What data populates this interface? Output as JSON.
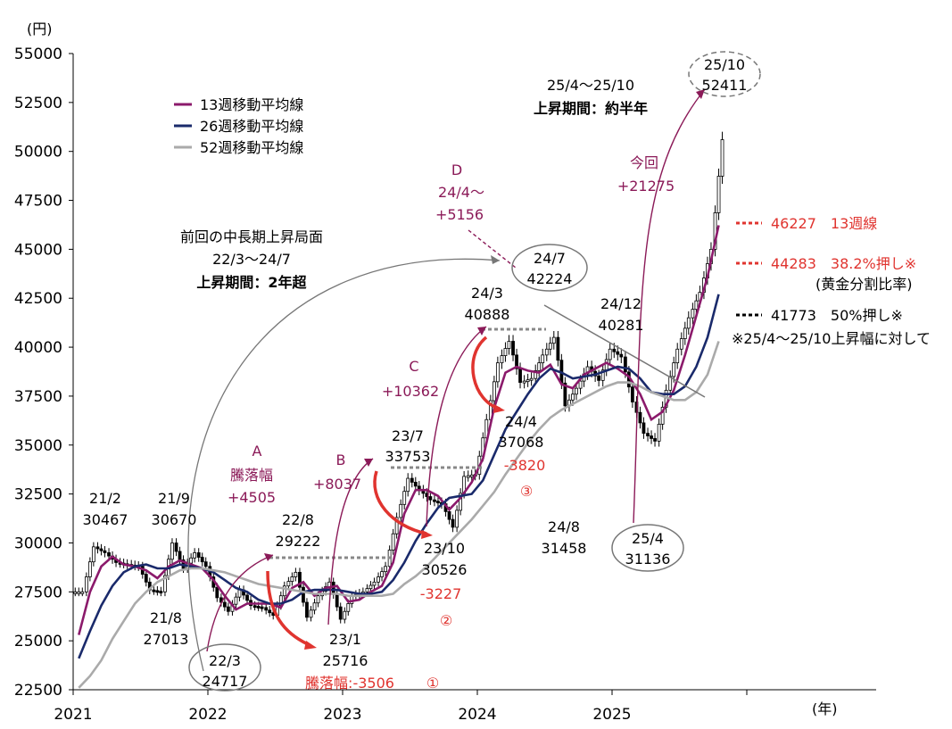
{
  "chart_data": {
    "type": "candlestick",
    "y_unit": "(円)",
    "x_unit": "(年)",
    "ylim": [
      22500,
      55000
    ],
    "y_ticks": [
      "55000",
      "52500",
      "50000",
      "47500",
      "45000",
      "42500",
      "40000",
      "37500",
      "35000",
      "32500",
      "30000",
      "27500",
      "25000",
      "22500"
    ],
    "x_ticks": [
      "2021",
      "2022",
      "2023",
      "2024",
      "2025"
    ],
    "xlim": [
      "2021-01",
      "2025-12"
    ],
    "legend": {
      "placement": "top-left",
      "entries": [
        {
          "label": "13週移動平均線",
          "color": "#8b1a6b"
        },
        {
          "label": "26週移動平均線",
          "color": "#1a2a6b"
        },
        {
          "label": "52週移動平均線",
          "color": "#aaaaaa"
        }
      ]
    },
    "series": [
      {
        "name": "13週移動平均線",
        "color": "#8b1a6b",
        "points": [
          [
            "2021-01",
            25300
          ],
          [
            "2021-02",
            27500
          ],
          [
            "2021-03",
            28800
          ],
          [
            "2021-04",
            29300
          ],
          [
            "2021-05",
            28900
          ],
          [
            "2021-06",
            28800
          ],
          [
            "2021-07",
            28600
          ],
          [
            "2021-08",
            28200
          ],
          [
            "2021-09",
            28800
          ],
          [
            "2021-10",
            29100
          ],
          [
            "2021-11",
            28900
          ],
          [
            "2021-12",
            28700
          ],
          [
            "2022-01",
            28100
          ],
          [
            "2022-02",
            27300
          ],
          [
            "2022-03",
            26600
          ],
          [
            "2022-04",
            26900
          ],
          [
            "2022-05",
            26900
          ],
          [
            "2022-06",
            26900
          ],
          [
            "2022-07",
            26700
          ],
          [
            "2022-08",
            27700
          ],
          [
            "2022-09",
            28000
          ],
          [
            "2022-10",
            27300
          ],
          [
            "2022-11",
            27700
          ],
          [
            "2022-12",
            27800
          ],
          [
            "2023-01",
            27000
          ],
          [
            "2023-02",
            27100
          ],
          [
            "2023-03",
            27500
          ],
          [
            "2023-04",
            27800
          ],
          [
            "2023-05",
            29000
          ],
          [
            "2023-06",
            31500
          ],
          [
            "2023-07",
            32700
          ],
          [
            "2023-08",
            32700
          ],
          [
            "2023-09",
            32400
          ],
          [
            "2023-10",
            31700
          ],
          [
            "2023-11",
            32300
          ],
          [
            "2023-12",
            33100
          ],
          [
            "2024-01",
            34300
          ],
          [
            "2024-02",
            36900
          ],
          [
            "2024-03",
            38700
          ],
          [
            "2024-04",
            39000
          ],
          [
            "2024-05",
            38800
          ],
          [
            "2024-06",
            38700
          ],
          [
            "2024-07",
            39100
          ],
          [
            "2024-08",
            38100
          ],
          [
            "2024-09",
            37900
          ],
          [
            "2024-10",
            38600
          ],
          [
            "2024-11",
            38900
          ],
          [
            "2024-12",
            39200
          ],
          [
            "2025-01",
            38900
          ],
          [
            "2025-02",
            38500
          ],
          [
            "2025-03",
            37600
          ],
          [
            "2025-04",
            36300
          ],
          [
            "2025-05",
            36700
          ],
          [
            "2025-06",
            37800
          ],
          [
            "2025-07",
            39600
          ],
          [
            "2025-08",
            41600
          ],
          [
            "2025-09",
            43600
          ],
          [
            "2025-10",
            46227
          ]
        ]
      },
      {
        "name": "26週移動平均線",
        "color": "#1a2a6b",
        "points": [
          [
            "2021-01",
            24100
          ],
          [
            "2021-02",
            25500
          ],
          [
            "2021-03",
            26800
          ],
          [
            "2021-04",
            27800
          ],
          [
            "2021-05",
            28500
          ],
          [
            "2021-06",
            28800
          ],
          [
            "2021-07",
            28900
          ],
          [
            "2021-08",
            28700
          ],
          [
            "2021-09",
            28700
          ],
          [
            "2021-10",
            28900
          ],
          [
            "2021-11",
            28800
          ],
          [
            "2021-12",
            28700
          ],
          [
            "2022-01",
            28500
          ],
          [
            "2022-02",
            28100
          ],
          [
            "2022-03",
            27700
          ],
          [
            "2022-04",
            27500
          ],
          [
            "2022-05",
            27100
          ],
          [
            "2022-06",
            26900
          ],
          [
            "2022-07",
            26900
          ],
          [
            "2022-08",
            27100
          ],
          [
            "2022-09",
            27500
          ],
          [
            "2022-10",
            27600
          ],
          [
            "2022-11",
            27600
          ],
          [
            "2022-12",
            27600
          ],
          [
            "2023-01",
            27500
          ],
          [
            "2023-02",
            27400
          ],
          [
            "2023-03",
            27400
          ],
          [
            "2023-04",
            27500
          ],
          [
            "2023-05",
            28100
          ],
          [
            "2023-06",
            29000
          ],
          [
            "2023-07",
            30100
          ],
          [
            "2023-08",
            31000
          ],
          [
            "2023-09",
            31800
          ],
          [
            "2023-10",
            32300
          ],
          [
            "2023-11",
            32400
          ],
          [
            "2023-12",
            32500
          ],
          [
            "2024-01",
            33200
          ],
          [
            "2024-02",
            34500
          ],
          [
            "2024-03",
            35800
          ],
          [
            "2024-04",
            36700
          ],
          [
            "2024-05",
            37600
          ],
          [
            "2024-06",
            38400
          ],
          [
            "2024-07",
            38900
          ],
          [
            "2024-08",
            38700
          ],
          [
            "2024-09",
            38400
          ],
          [
            "2024-10",
            38500
          ],
          [
            "2024-11",
            38600
          ],
          [
            "2024-12",
            38800
          ],
          [
            "2025-01",
            39000
          ],
          [
            "2025-02",
            38900
          ],
          [
            "2025-03",
            38400
          ],
          [
            "2025-04",
            37700
          ],
          [
            "2025-05",
            37600
          ],
          [
            "2025-06",
            37600
          ],
          [
            "2025-07",
            38000
          ],
          [
            "2025-08",
            39000
          ],
          [
            "2025-09",
            40500
          ],
          [
            "2025-10",
            42700
          ]
        ]
      },
      {
        "name": "52週移動平均線",
        "color": "#aaaaaa",
        "points": [
          [
            "2021-01",
            22600
          ],
          [
            "2021-02",
            23200
          ],
          [
            "2021-03",
            24000
          ],
          [
            "2021-04",
            25100
          ],
          [
            "2021-05",
            26000
          ],
          [
            "2021-06",
            26900
          ],
          [
            "2021-07",
            27500
          ],
          [
            "2021-08",
            28000
          ],
          [
            "2021-09",
            28300
          ],
          [
            "2021-10",
            28600
          ],
          [
            "2021-11",
            28700
          ],
          [
            "2021-12",
            28700
          ],
          [
            "2022-01",
            28600
          ],
          [
            "2022-02",
            28500
          ],
          [
            "2022-03",
            28300
          ],
          [
            "2022-04",
            28100
          ],
          [
            "2022-05",
            27900
          ],
          [
            "2022-06",
            27800
          ],
          [
            "2022-07",
            27700
          ],
          [
            "2022-08",
            27600
          ],
          [
            "2022-09",
            27500
          ],
          [
            "2022-10",
            27400
          ],
          [
            "2022-11",
            27400
          ],
          [
            "2022-12",
            27400
          ],
          [
            "2023-01",
            27300
          ],
          [
            "2023-02",
            27300
          ],
          [
            "2023-03",
            27300
          ],
          [
            "2023-04",
            27300
          ],
          [
            "2023-05",
            27400
          ],
          [
            "2023-06",
            27900
          ],
          [
            "2023-07",
            28300
          ],
          [
            "2023-08",
            28800
          ],
          [
            "2023-09",
            29400
          ],
          [
            "2023-10",
            30000
          ],
          [
            "2023-11",
            30600
          ],
          [
            "2023-12",
            31200
          ],
          [
            "2024-01",
            31900
          ],
          [
            "2024-02",
            32600
          ],
          [
            "2024-03",
            33500
          ],
          [
            "2024-04",
            34300
          ],
          [
            "2024-05",
            35100
          ],
          [
            "2024-06",
            35800
          ],
          [
            "2024-07",
            36400
          ],
          [
            "2024-08",
            36800
          ],
          [
            "2024-09",
            37100
          ],
          [
            "2024-10",
            37400
          ],
          [
            "2024-11",
            37700
          ],
          [
            "2024-12",
            38000
          ],
          [
            "2025-01",
            38200
          ],
          [
            "2025-02",
            38200
          ],
          [
            "2025-03",
            38000
          ],
          [
            "2025-04",
            37700
          ],
          [
            "2025-05",
            37500
          ],
          [
            "2025-06",
            37300
          ],
          [
            "2025-07",
            37300
          ],
          [
            "2025-08",
            37700
          ],
          [
            "2025-09",
            38600
          ],
          [
            "2025-10",
            40300
          ]
        ]
      },
      {
        "name": "candles",
        "color": "#000000",
        "points": [
          [
            "2021-01",
            27500
          ],
          [
            "2021-02",
            29800
          ],
          [
            "2021-03",
            29500
          ],
          [
            "2021-04",
            29000
          ],
          [
            "2021-05",
            28900
          ],
          [
            "2021-06",
            28800
          ],
          [
            "2021-07",
            27600
          ],
          [
            "2021-08",
            27500
          ],
          [
            "2021-09",
            30000
          ],
          [
            "2021-10",
            28700
          ],
          [
            "2021-11",
            29500
          ],
          [
            "2021-12",
            28800
          ],
          [
            "2022-01",
            27200
          ],
          [
            "2022-02",
            26500
          ],
          [
            "2022-03",
            27600
          ],
          [
            "2022-04",
            26800
          ],
          [
            "2022-05",
            26700
          ],
          [
            "2022-06",
            26300
          ],
          [
            "2022-07",
            27800
          ],
          [
            "2022-08",
            28500
          ],
          [
            "2022-09",
            26200
          ],
          [
            "2022-10",
            27300
          ],
          [
            "2022-11",
            28000
          ],
          [
            "2022-12",
            26100
          ],
          [
            "2023-01",
            27300
          ],
          [
            "2023-02",
            27500
          ],
          [
            "2023-03",
            28000
          ],
          [
            "2023-04",
            28800
          ],
          [
            "2023-05",
            31300
          ],
          [
            "2023-06",
            33300
          ],
          [
            "2023-07",
            32700
          ],
          [
            "2023-08",
            32200
          ],
          [
            "2023-09",
            32000
          ],
          [
            "2023-10",
            30800
          ],
          [
            "2023-11",
            33400
          ],
          [
            "2023-12",
            33500
          ],
          [
            "2024-01",
            36300
          ],
          [
            "2024-02",
            39200
          ],
          [
            "2024-03",
            40300
          ],
          [
            "2024-04",
            38200
          ],
          [
            "2024-05",
            38400
          ],
          [
            "2024-06",
            39600
          ],
          [
            "2024-07",
            40500
          ],
          [
            "2024-08",
            37000
          ],
          [
            "2024-09",
            37900
          ],
          [
            "2024-10",
            39000
          ],
          [
            "2024-11",
            38300
          ],
          [
            "2024-12",
            39900
          ],
          [
            "2025-01",
            39500
          ],
          [
            "2025-02",
            37200
          ],
          [
            "2025-03",
            35600
          ],
          [
            "2025-04",
            35200
          ],
          [
            "2025-05",
            37800
          ],
          [
            "2025-06",
            39900
          ],
          [
            "2025-07",
            41500
          ],
          [
            "2025-08",
            42800
          ],
          [
            "2025-09",
            45000
          ],
          [
            "2025-10",
            50600
          ]
        ]
      }
    ],
    "reference_levels": [
      {
        "value": 46227,
        "label": "46227　13週線",
        "color": "#e0342f"
      },
      {
        "value": 44283,
        "label": "44283　38.2%押し※",
        "color": "#e0342f"
      },
      {
        "value": 41773,
        "label": "41773　50%押し※",
        "color": "#000000"
      }
    ],
    "annotations": {
      "a_2102": "21/2",
      "a_2102_v": "30467",
      "a_2109": "21/9",
      "a_2109_v": "30670",
      "a_2108": "21/8",
      "a_2108_v": "27013",
      "a_2203": "22/3",
      "a_2203_v": "24717",
      "a_2208": "22/8",
      "a_2208_v": "29222",
      "a_2301": "23/1",
      "a_2301_v": "25716",
      "a_2307": "23/7",
      "a_2307_v": "33753",
      "a_2310": "23/10",
      "a_2310_v": "30526",
      "a_2403": "24/3",
      "a_2403_v": "40888",
      "a_2404": "24/4",
      "a_2404_v": "37068",
      "a_2407": "24/7",
      "a_2407_v": "42224",
      "a_2408": "24/8",
      "a_2408_v": "31458",
      "a_2412": "24/12",
      "a_2412_v": "40281",
      "a_2504": "25/4",
      "a_2504_v": "31136",
      "a_2510": "25/10",
      "a_2510_v": "52411",
      "A": "A",
      "A_sub": "騰落幅",
      "A_v": "+4505",
      "B": "B",
      "B_v": "+8037",
      "C": "C",
      "C_v": "+10362",
      "D": "D",
      "D_sub": "24/4～",
      "D_v": "+5156",
      "now": "今回",
      "now_v": "+21275",
      "drop1": "騰落幅:-3506",
      "drop1_num": "①",
      "drop2": "-3227",
      "drop2_num": "②",
      "drop3": "-3820",
      "drop3_num": "③",
      "prev_title": "前回の中長期上昇局面",
      "prev_range": "22/3～24/7",
      "prev_period": "上昇期間：2年超",
      "cur_range": "25/4～25/10",
      "cur_period": "上昇期間：約半年",
      "footnote": "※25/4～25/10上昇幅に対して",
      "golden": "(黄金分割比率)"
    }
  }
}
